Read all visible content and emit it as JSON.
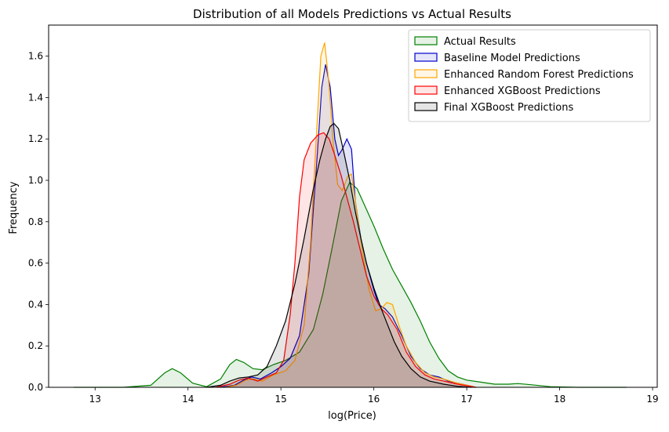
{
  "chart_data": {
    "type": "area",
    "title": "Distribution of all Models Predictions vs Actual Results",
    "xlabel": "log(Price)",
    "ylabel": "Frequency",
    "xlim": [
      12.5,
      19.05
    ],
    "ylim": [
      0,
      1.75
    ],
    "xticks": [
      13,
      14,
      15,
      16,
      17,
      18,
      19
    ],
    "yticks": [
      0.0,
      0.2,
      0.4,
      0.6,
      0.8,
      1.0,
      1.2,
      1.4,
      1.6
    ],
    "grid": false,
    "legend_position": "top-right",
    "series": [
      {
        "name": "Actual Results",
        "color": "#008000",
        "points": [
          [
            12.77,
            0.0
          ],
          [
            13.3,
            0.0
          ],
          [
            13.6,
            0.01
          ],
          [
            13.75,
            0.07
          ],
          [
            13.83,
            0.09
          ],
          [
            13.92,
            0.07
          ],
          [
            14.05,
            0.02
          ],
          [
            14.2,
            0.003
          ],
          [
            14.35,
            0.04
          ],
          [
            14.45,
            0.11
          ],
          [
            14.52,
            0.135
          ],
          [
            14.6,
            0.12
          ],
          [
            14.7,
            0.09
          ],
          [
            14.8,
            0.085
          ],
          [
            14.92,
            0.11
          ],
          [
            15.05,
            0.13
          ],
          [
            15.2,
            0.17
          ],
          [
            15.35,
            0.28
          ],
          [
            15.45,
            0.45
          ],
          [
            15.55,
            0.67
          ],
          [
            15.65,
            0.9
          ],
          [
            15.74,
            0.99
          ],
          [
            15.82,
            0.96
          ],
          [
            15.92,
            0.86
          ],
          [
            16.0,
            0.78
          ],
          [
            16.1,
            0.67
          ],
          [
            16.2,
            0.57
          ],
          [
            16.3,
            0.49
          ],
          [
            16.4,
            0.41
          ],
          [
            16.5,
            0.32
          ],
          [
            16.6,
            0.22
          ],
          [
            16.7,
            0.14
          ],
          [
            16.8,
            0.08
          ],
          [
            16.9,
            0.05
          ],
          [
            17.0,
            0.035
          ],
          [
            17.15,
            0.025
          ],
          [
            17.3,
            0.015
          ],
          [
            17.45,
            0.015
          ],
          [
            17.55,
            0.018
          ],
          [
            17.7,
            0.012
          ],
          [
            17.9,
            0.003
          ],
          [
            18.2,
            0.0
          ],
          [
            18.72,
            0.0
          ]
        ]
      },
      {
        "name": "Baseline Model Predictions",
        "color": "#0000cc",
        "points": [
          [
            14.35,
            0.0
          ],
          [
            14.5,
            0.01
          ],
          [
            14.6,
            0.035
          ],
          [
            14.68,
            0.05
          ],
          [
            14.78,
            0.04
          ],
          [
            14.9,
            0.07
          ],
          [
            15.0,
            0.1
          ],
          [
            15.1,
            0.14
          ],
          [
            15.2,
            0.25
          ],
          [
            15.3,
            0.55
          ],
          [
            15.38,
            1.05
          ],
          [
            15.44,
            1.45
          ],
          [
            15.48,
            1.56
          ],
          [
            15.53,
            1.45
          ],
          [
            15.58,
            1.2
          ],
          [
            15.62,
            1.12
          ],
          [
            15.66,
            1.15
          ],
          [
            15.71,
            1.2
          ],
          [
            15.76,
            1.15
          ],
          [
            15.8,
            0.9
          ],
          [
            15.86,
            0.72
          ],
          [
            15.92,
            0.6
          ],
          [
            16.0,
            0.47
          ],
          [
            16.05,
            0.4
          ],
          [
            16.12,
            0.38
          ],
          [
            16.2,
            0.34
          ],
          [
            16.3,
            0.25
          ],
          [
            16.4,
            0.15
          ],
          [
            16.5,
            0.09
          ],
          [
            16.6,
            0.06
          ],
          [
            16.7,
            0.05
          ],
          [
            16.8,
            0.03
          ],
          [
            16.95,
            0.015
          ],
          [
            17.1,
            0.0
          ]
        ]
      },
      {
        "name": "Enhanced Random Forest Predictions",
        "color": "#ffa500",
        "points": [
          [
            14.4,
            0.0
          ],
          [
            14.52,
            0.01
          ],
          [
            14.62,
            0.035
          ],
          [
            14.7,
            0.04
          ],
          [
            14.8,
            0.03
          ],
          [
            14.92,
            0.06
          ],
          [
            15.05,
            0.08
          ],
          [
            15.15,
            0.13
          ],
          [
            15.25,
            0.3
          ],
          [
            15.32,
            0.7
          ],
          [
            15.38,
            1.2
          ],
          [
            15.43,
            1.6
          ],
          [
            15.47,
            1.665
          ],
          [
            15.51,
            1.5
          ],
          [
            15.56,
            1.2
          ],
          [
            15.61,
            0.98
          ],
          [
            15.66,
            0.95
          ],
          [
            15.72,
            1.02
          ],
          [
            15.76,
            1.03
          ],
          [
            15.8,
            0.9
          ],
          [
            15.88,
            0.65
          ],
          [
            15.95,
            0.47
          ],
          [
            16.02,
            0.37
          ],
          [
            16.08,
            0.38
          ],
          [
            16.14,
            0.41
          ],
          [
            16.2,
            0.4
          ],
          [
            16.27,
            0.3
          ],
          [
            16.35,
            0.2
          ],
          [
            16.45,
            0.12
          ],
          [
            16.55,
            0.07
          ],
          [
            16.65,
            0.05
          ],
          [
            16.75,
            0.04
          ],
          [
            16.9,
            0.02
          ],
          [
            17.1,
            0.0
          ]
        ]
      },
      {
        "name": "Enhanced XGBoost Predictions",
        "color": "#ff0000",
        "points": [
          [
            14.3,
            0.0
          ],
          [
            14.45,
            0.015
          ],
          [
            14.55,
            0.035
          ],
          [
            14.65,
            0.045
          ],
          [
            14.75,
            0.03
          ],
          [
            14.85,
            0.05
          ],
          [
            14.95,
            0.07
          ],
          [
            15.03,
            0.13
          ],
          [
            15.1,
            0.35
          ],
          [
            15.15,
            0.6
          ],
          [
            15.2,
            0.92
          ],
          [
            15.25,
            1.1
          ],
          [
            15.32,
            1.18
          ],
          [
            15.4,
            1.22
          ],
          [
            15.46,
            1.23
          ],
          [
            15.52,
            1.2
          ],
          [
            15.58,
            1.12
          ],
          [
            15.65,
            1.02
          ],
          [
            15.72,
            0.9
          ],
          [
            15.78,
            0.8
          ],
          [
            15.85,
            0.67
          ],
          [
            15.92,
            0.54
          ],
          [
            16.0,
            0.44
          ],
          [
            16.08,
            0.38
          ],
          [
            16.15,
            0.35
          ],
          [
            16.25,
            0.28
          ],
          [
            16.35,
            0.17
          ],
          [
            16.45,
            0.1
          ],
          [
            16.55,
            0.06
          ],
          [
            16.65,
            0.04
          ],
          [
            16.75,
            0.03
          ],
          [
            16.9,
            0.015
          ],
          [
            17.1,
            0.0
          ]
        ]
      },
      {
        "name": "Final XGBoost Predictions",
        "color": "#000000",
        "points": [
          [
            14.2,
            0.0
          ],
          [
            14.35,
            0.01
          ],
          [
            14.45,
            0.03
          ],
          [
            14.55,
            0.045
          ],
          [
            14.65,
            0.05
          ],
          [
            14.75,
            0.06
          ],
          [
            14.85,
            0.1
          ],
          [
            14.95,
            0.2
          ],
          [
            15.05,
            0.32
          ],
          [
            15.15,
            0.5
          ],
          [
            15.25,
            0.72
          ],
          [
            15.35,
            0.96
          ],
          [
            15.42,
            1.1
          ],
          [
            15.48,
            1.2
          ],
          [
            15.53,
            1.26
          ],
          [
            15.57,
            1.275
          ],
          [
            15.62,
            1.25
          ],
          [
            15.68,
            1.13
          ],
          [
            15.74,
            1.0
          ],
          [
            15.8,
            0.85
          ],
          [
            15.86,
            0.72
          ],
          [
            15.92,
            0.6
          ],
          [
            16.0,
            0.48
          ],
          [
            16.08,
            0.38
          ],
          [
            16.15,
            0.3
          ],
          [
            16.22,
            0.22
          ],
          [
            16.3,
            0.15
          ],
          [
            16.4,
            0.09
          ],
          [
            16.5,
            0.05
          ],
          [
            16.6,
            0.03
          ],
          [
            16.75,
            0.015
          ],
          [
            16.9,
            0.005
          ],
          [
            17.05,
            0.0
          ]
        ]
      }
    ]
  }
}
